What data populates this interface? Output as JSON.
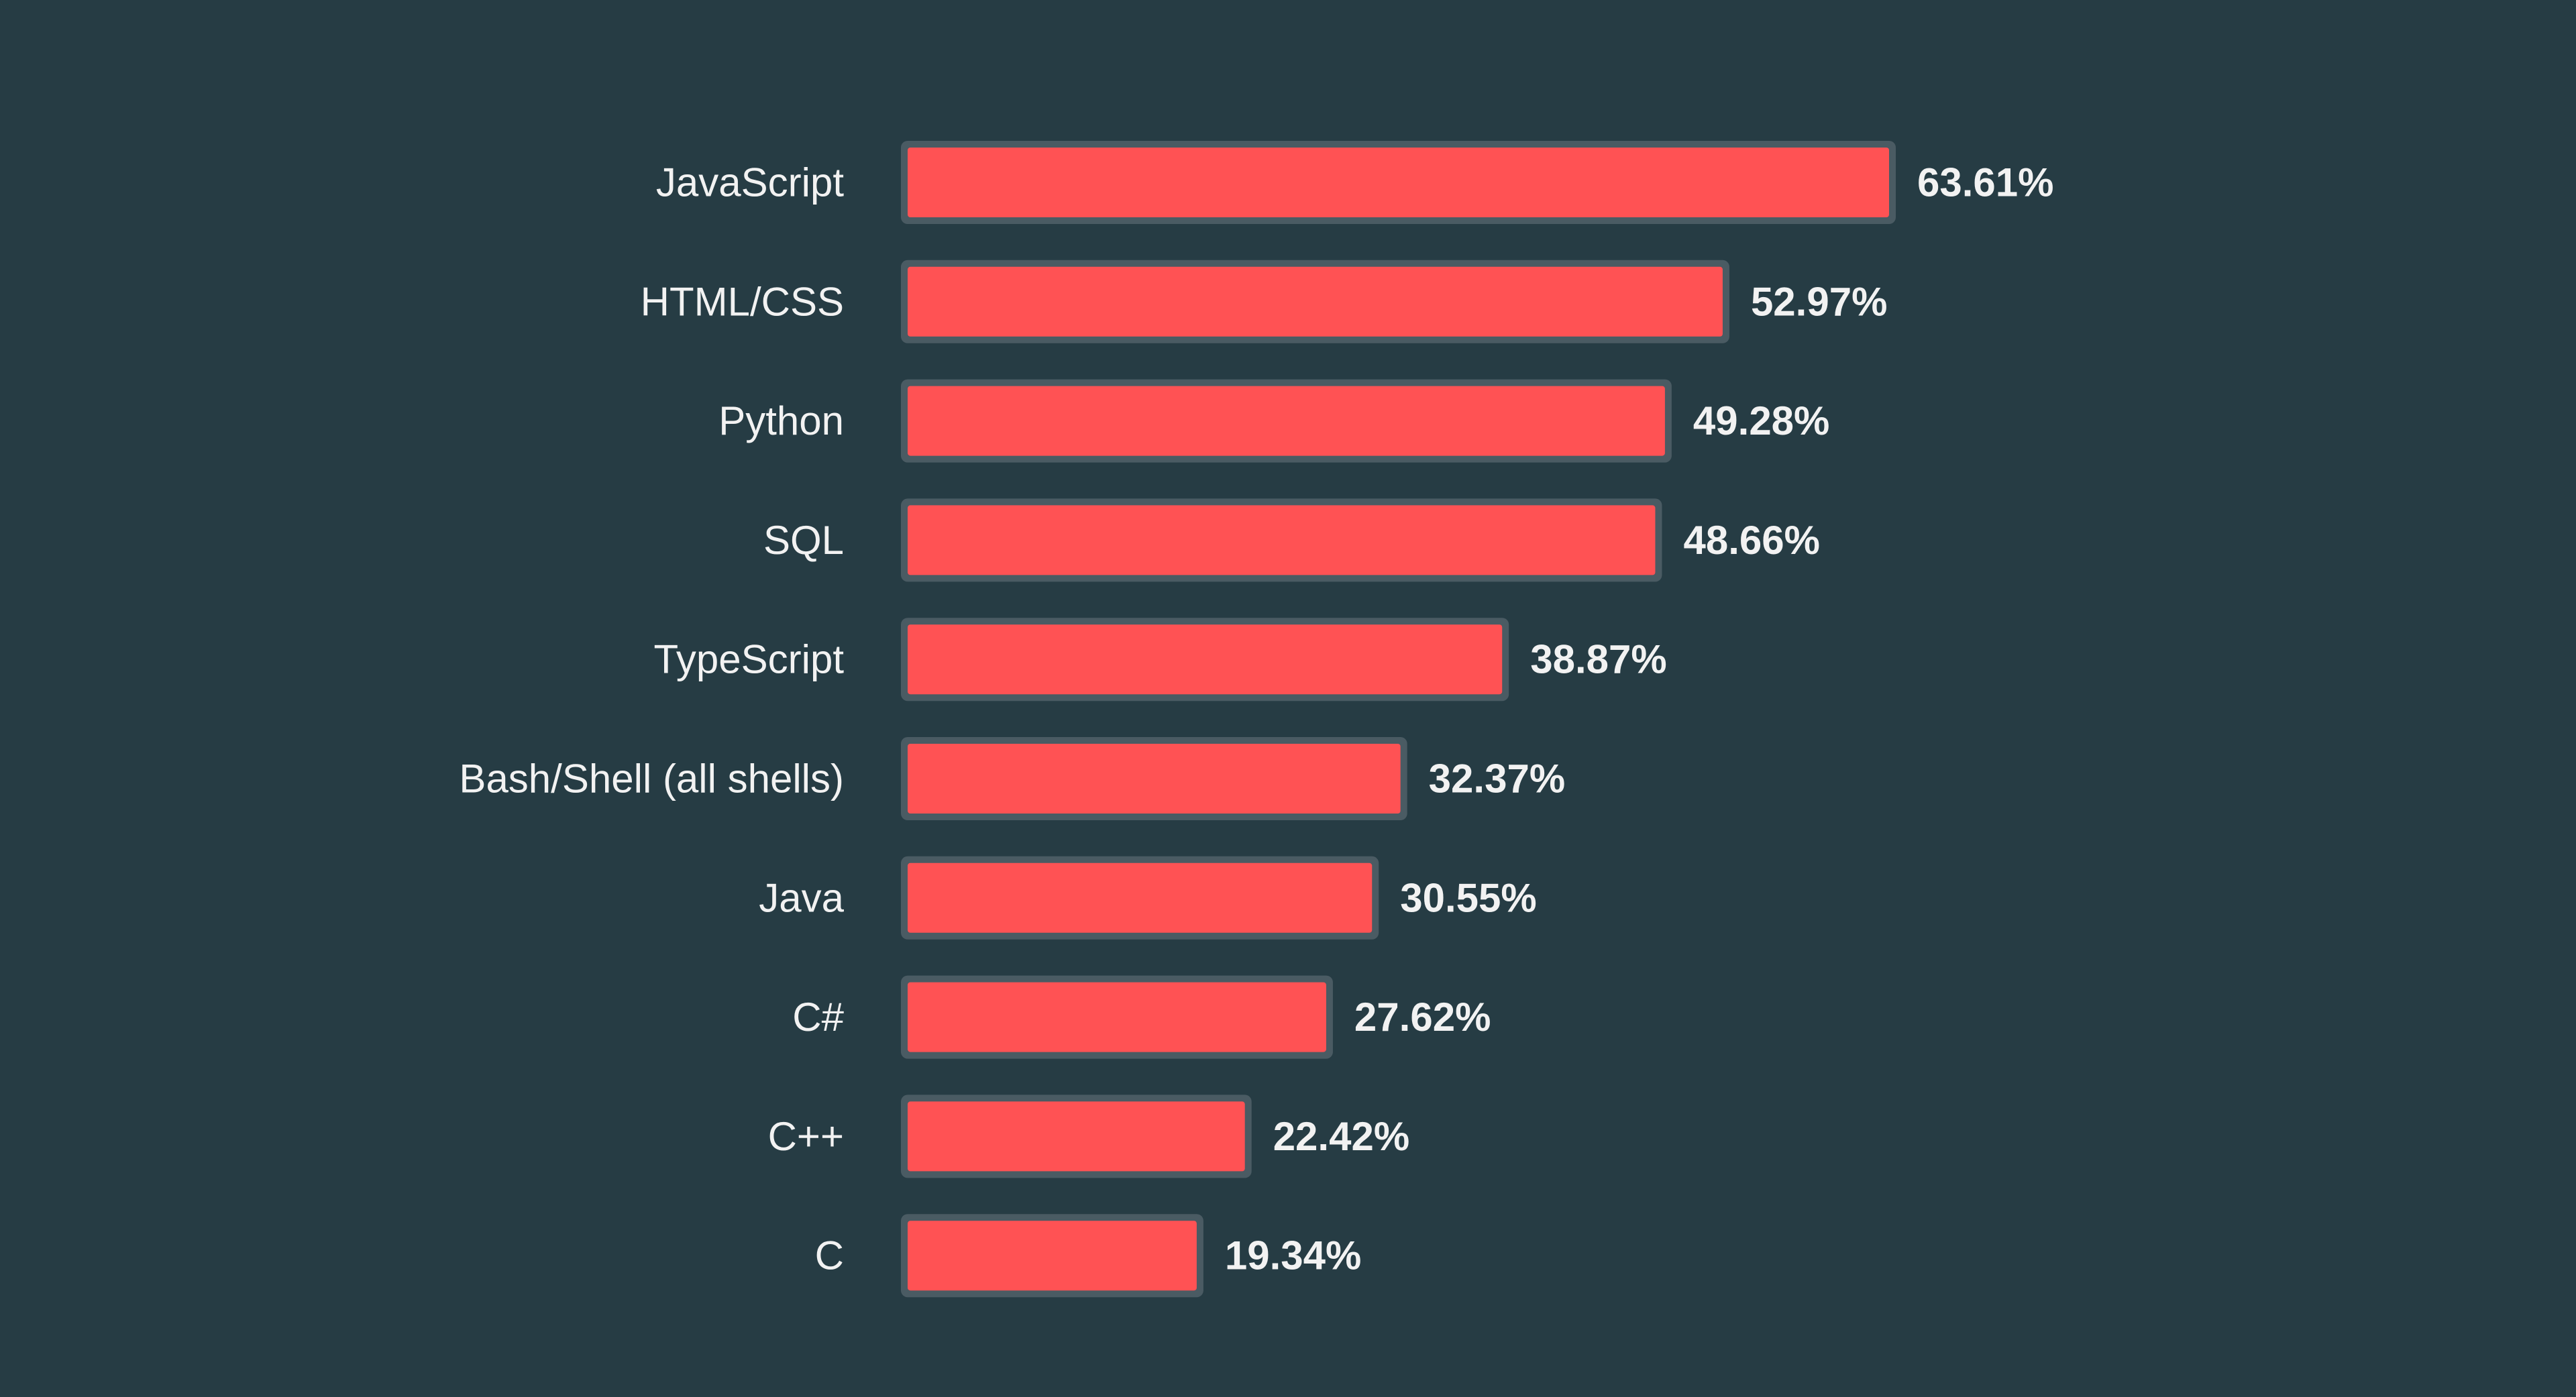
{
  "chart_data": {
    "type": "bar",
    "orientation": "horizontal",
    "categories": [
      "JavaScript",
      "HTML/CSS",
      "Python",
      "SQL",
      "TypeScript",
      "Bash/Shell (all shells)",
      "Java",
      "C#",
      "C++",
      "C"
    ],
    "values": [
      63.61,
      52.97,
      49.28,
      48.66,
      38.87,
      32.37,
      30.55,
      27.62,
      22.42,
      19.34
    ],
    "value_labels": [
      "63.61%",
      "52.97%",
      "49.28%",
      "48.66%",
      "38.87%",
      "32.37%",
      "30.55%",
      "27.62%",
      "22.42%",
      "19.34%"
    ],
    "xlim": [
      0,
      70
    ],
    "grid": false,
    "legend": "none",
    "colors": {
      "background": "#263c44",
      "bar_fill": "#ff5254",
      "bar_outline": "#4a5b63",
      "text": "#f2f2f2"
    }
  }
}
